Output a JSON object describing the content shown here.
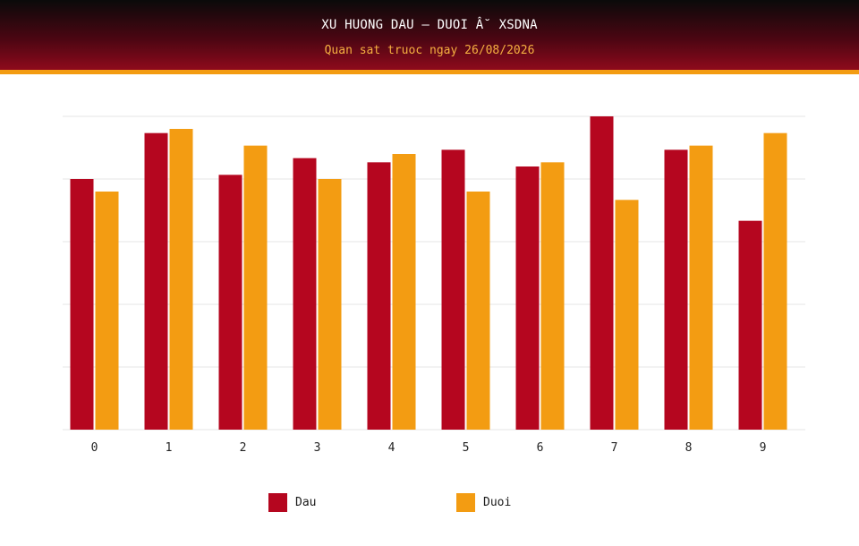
{
  "header": {
    "title": "XU HUONG DAU – DUOI Â˘ XSDNA",
    "subtitle": "Quan sat truoc ngay 26/08/2026"
  },
  "colors": {
    "dau": "#b5061f",
    "duoi": "#f39c12"
  },
  "chart_data": {
    "type": "bar",
    "title": "XU HUONG DAU – DUOI Â˘ XSDNA",
    "subtitle": "Quan sat truoc ngay 26/08/2026",
    "categories": [
      "0",
      "1",
      "2",
      "3",
      "4",
      "5",
      "6",
      "7",
      "8",
      "9"
    ],
    "series": [
      {
        "name": "Dau",
        "values": [
          12.0,
          14.2,
          12.2,
          13.0,
          12.8,
          13.4,
          12.6,
          15.0,
          13.4,
          10.0
        ]
      },
      {
        "name": "Duoi",
        "values": [
          11.4,
          14.4,
          13.6,
          12.0,
          13.2,
          11.4,
          12.8,
          11.0,
          13.6,
          14.2
        ]
      }
    ],
    "xlabel": "",
    "ylabel": "",
    "ylim": [
      0,
      15
    ],
    "y_tick_labels_shown": false,
    "grid": true,
    "legend_position": "bottom-center"
  },
  "legend": [
    {
      "label": "Dau"
    },
    {
      "label": "Duoi"
    }
  ]
}
